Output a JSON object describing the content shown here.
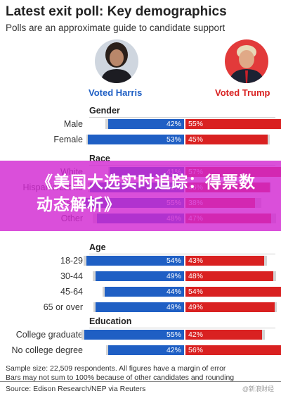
{
  "header": {
    "title": "Latest exit poll: Key demographics",
    "subtitle": "Polls are an approximate guide to candidate support"
  },
  "candidates": {
    "harris": {
      "label": "Voted Harris",
      "color": "#1f5fc4"
    },
    "trump": {
      "label": "Voted Trump",
      "color": "#d92121"
    }
  },
  "banner": {
    "text": "《美国大选实时追踪：得票数动态解析》"
  },
  "chart_data": {
    "type": "bar",
    "orientation": "horizontal",
    "series_colors": {
      "Voted Harris": "#1f5fc4",
      "Voted Trump": "#d92121"
    },
    "groups": [
      {
        "name": "Gender",
        "rows": [
          {
            "label": "Male",
            "harris": 42,
            "trump": 55
          },
          {
            "label": "Female",
            "harris": 53,
            "trump": 45
          }
        ]
      },
      {
        "name": "Race",
        "rows": [
          {
            "label": "White",
            "harris": 41,
            "trump": 57
          },
          {
            "label": "Hispanic/Latino",
            "harris": 52,
            "trump": 46
          },
          {
            "label": "Asian",
            "harris": 55,
            "trump": 38
          },
          {
            "label": "Other",
            "harris": 48,
            "trump": 47
          }
        ]
      },
      {
        "name": "Age",
        "rows": [
          {
            "label": "18-29",
            "harris": 54,
            "trump": 43
          },
          {
            "label": "30-44",
            "harris": 49,
            "trump": 48
          },
          {
            "label": "45-64",
            "harris": 44,
            "trump": 54
          },
          {
            "label": "65 or over",
            "harris": 49,
            "trump": 49
          }
        ]
      },
      {
        "name": "Education",
        "rows": [
          {
            "label": "College graduate",
            "harris": 55,
            "trump": 42
          },
          {
            "label": "No college degree",
            "harris": 42,
            "trump": 56
          }
        ]
      }
    ]
  },
  "footer": {
    "note_1": "Sample size: 22,509 respondents. All figures have a margin of error",
    "note_2": "Bars may not sum to 100% because of other candidates and rounding",
    "source": "Source: Edison Research/NEP via Reuters",
    "watermark": "@新浪财经"
  }
}
